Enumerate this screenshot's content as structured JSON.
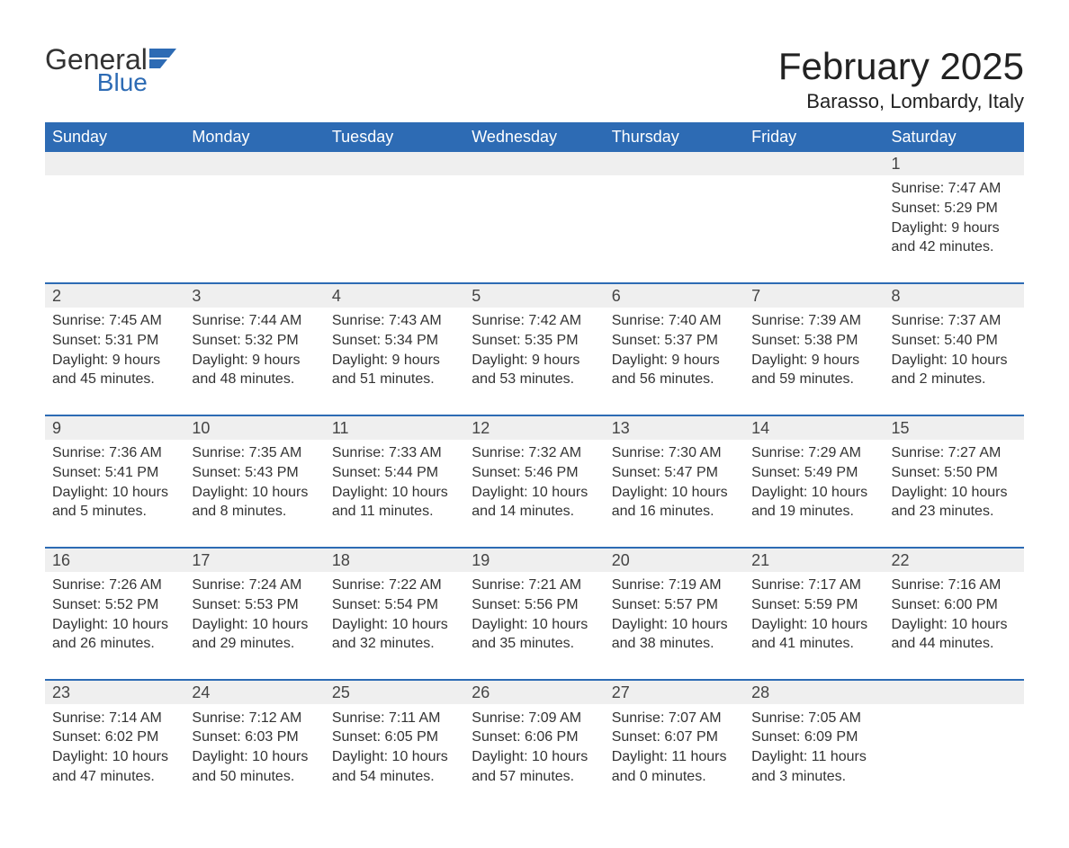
{
  "logo": {
    "general": "General",
    "blue": "Blue"
  },
  "colors": {
    "brand": "#2d6bb4",
    "header_bg": "#2d6bb4",
    "header_text": "#ffffff",
    "daynum_bg": "#efefef",
    "text": "#333333",
    "body_bg": "#ffffff"
  },
  "typography": {
    "title_fontsize": 42,
    "location_fontsize": 22,
    "weekday_fontsize": 18,
    "daynum_fontsize": 18,
    "cell_fontsize": 16
  },
  "title": "February 2025",
  "location": "Barasso, Lombardy, Italy",
  "weekdays": [
    "Sunday",
    "Monday",
    "Tuesday",
    "Wednesday",
    "Thursday",
    "Friday",
    "Saturday"
  ],
  "calendar": {
    "type": "table",
    "columns": 7,
    "weeks": [
      {
        "days": [
          null,
          null,
          null,
          null,
          null,
          null,
          {
            "n": "1",
            "sunrise": "Sunrise: 7:47 AM",
            "sunset": "Sunset: 5:29 PM",
            "daylight": "Daylight: 9 hours and 42 minutes."
          }
        ]
      },
      {
        "days": [
          {
            "n": "2",
            "sunrise": "Sunrise: 7:45 AM",
            "sunset": "Sunset: 5:31 PM",
            "daylight": "Daylight: 9 hours and 45 minutes."
          },
          {
            "n": "3",
            "sunrise": "Sunrise: 7:44 AM",
            "sunset": "Sunset: 5:32 PM",
            "daylight": "Daylight: 9 hours and 48 minutes."
          },
          {
            "n": "4",
            "sunrise": "Sunrise: 7:43 AM",
            "sunset": "Sunset: 5:34 PM",
            "daylight": "Daylight: 9 hours and 51 minutes."
          },
          {
            "n": "5",
            "sunrise": "Sunrise: 7:42 AM",
            "sunset": "Sunset: 5:35 PM",
            "daylight": "Daylight: 9 hours and 53 minutes."
          },
          {
            "n": "6",
            "sunrise": "Sunrise: 7:40 AM",
            "sunset": "Sunset: 5:37 PM",
            "daylight": "Daylight: 9 hours and 56 minutes."
          },
          {
            "n": "7",
            "sunrise": "Sunrise: 7:39 AM",
            "sunset": "Sunset: 5:38 PM",
            "daylight": "Daylight: 9 hours and 59 minutes."
          },
          {
            "n": "8",
            "sunrise": "Sunrise: 7:37 AM",
            "sunset": "Sunset: 5:40 PM",
            "daylight": "Daylight: 10 hours and 2 minutes."
          }
        ]
      },
      {
        "days": [
          {
            "n": "9",
            "sunrise": "Sunrise: 7:36 AM",
            "sunset": "Sunset: 5:41 PM",
            "daylight": "Daylight: 10 hours and 5 minutes."
          },
          {
            "n": "10",
            "sunrise": "Sunrise: 7:35 AM",
            "sunset": "Sunset: 5:43 PM",
            "daylight": "Daylight: 10 hours and 8 minutes."
          },
          {
            "n": "11",
            "sunrise": "Sunrise: 7:33 AM",
            "sunset": "Sunset: 5:44 PM",
            "daylight": "Daylight: 10 hours and 11 minutes."
          },
          {
            "n": "12",
            "sunrise": "Sunrise: 7:32 AM",
            "sunset": "Sunset: 5:46 PM",
            "daylight": "Daylight: 10 hours and 14 minutes."
          },
          {
            "n": "13",
            "sunrise": "Sunrise: 7:30 AM",
            "sunset": "Sunset: 5:47 PM",
            "daylight": "Daylight: 10 hours and 16 minutes."
          },
          {
            "n": "14",
            "sunrise": "Sunrise: 7:29 AM",
            "sunset": "Sunset: 5:49 PM",
            "daylight": "Daylight: 10 hours and 19 minutes."
          },
          {
            "n": "15",
            "sunrise": "Sunrise: 7:27 AM",
            "sunset": "Sunset: 5:50 PM",
            "daylight": "Daylight: 10 hours and 23 minutes."
          }
        ]
      },
      {
        "days": [
          {
            "n": "16",
            "sunrise": "Sunrise: 7:26 AM",
            "sunset": "Sunset: 5:52 PM",
            "daylight": "Daylight: 10 hours and 26 minutes."
          },
          {
            "n": "17",
            "sunrise": "Sunrise: 7:24 AM",
            "sunset": "Sunset: 5:53 PM",
            "daylight": "Daylight: 10 hours and 29 minutes."
          },
          {
            "n": "18",
            "sunrise": "Sunrise: 7:22 AM",
            "sunset": "Sunset: 5:54 PM",
            "daylight": "Daylight: 10 hours and 32 minutes."
          },
          {
            "n": "19",
            "sunrise": "Sunrise: 7:21 AM",
            "sunset": "Sunset: 5:56 PM",
            "daylight": "Daylight: 10 hours and 35 minutes."
          },
          {
            "n": "20",
            "sunrise": "Sunrise: 7:19 AM",
            "sunset": "Sunset: 5:57 PM",
            "daylight": "Daylight: 10 hours and 38 minutes."
          },
          {
            "n": "21",
            "sunrise": "Sunrise: 7:17 AM",
            "sunset": "Sunset: 5:59 PM",
            "daylight": "Daylight: 10 hours and 41 minutes."
          },
          {
            "n": "22",
            "sunrise": "Sunrise: 7:16 AM",
            "sunset": "Sunset: 6:00 PM",
            "daylight": "Daylight: 10 hours and 44 minutes."
          }
        ]
      },
      {
        "days": [
          {
            "n": "23",
            "sunrise": "Sunrise: 7:14 AM",
            "sunset": "Sunset: 6:02 PM",
            "daylight": "Daylight: 10 hours and 47 minutes."
          },
          {
            "n": "24",
            "sunrise": "Sunrise: 7:12 AM",
            "sunset": "Sunset: 6:03 PM",
            "daylight": "Daylight: 10 hours and 50 minutes."
          },
          {
            "n": "25",
            "sunrise": "Sunrise: 7:11 AM",
            "sunset": "Sunset: 6:05 PM",
            "daylight": "Daylight: 10 hours and 54 minutes."
          },
          {
            "n": "26",
            "sunrise": "Sunrise: 7:09 AM",
            "sunset": "Sunset: 6:06 PM",
            "daylight": "Daylight: 10 hours and 57 minutes."
          },
          {
            "n": "27",
            "sunrise": "Sunrise: 7:07 AM",
            "sunset": "Sunset: 6:07 PM",
            "daylight": "Daylight: 11 hours and 0 minutes."
          },
          {
            "n": "28",
            "sunrise": "Sunrise: 7:05 AM",
            "sunset": "Sunset: 6:09 PM",
            "daylight": "Daylight: 11 hours and 3 minutes."
          },
          null
        ]
      }
    ]
  }
}
